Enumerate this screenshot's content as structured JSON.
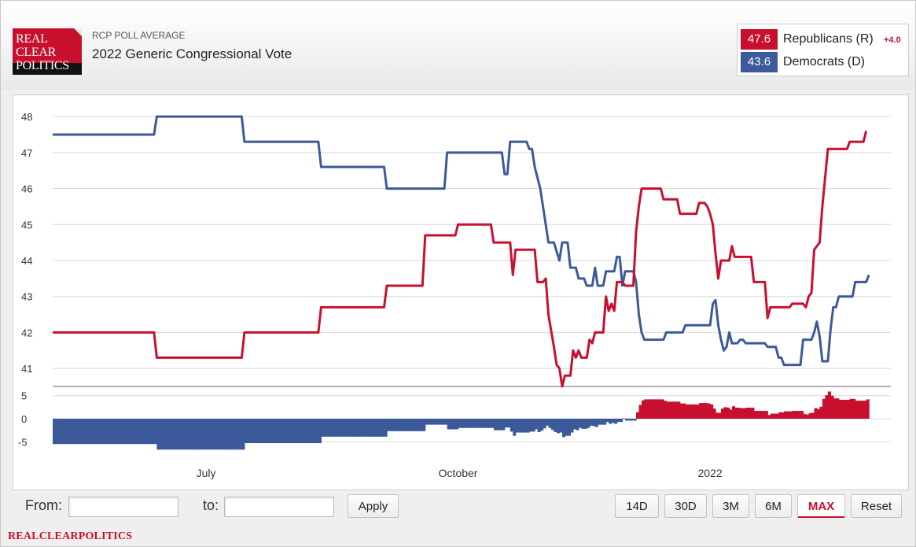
{
  "logo": {
    "lines": [
      "REAL",
      "CLEAR",
      "POLITICS"
    ]
  },
  "header": {
    "kicker": "RCP POLL AVERAGE",
    "title": "2022 Generic Congressional Vote"
  },
  "legend": [
    {
      "value": "47.6",
      "name": "Republicans (R)",
      "spread": "+4.0",
      "color": "#c8102e"
    },
    {
      "value": "43.6",
      "name": "Democrats (D)",
      "spread": "",
      "color": "#3c5a9a"
    }
  ],
  "colors": {
    "republican": "#c8102e",
    "democrat": "#3c5a9a",
    "grid": "#d8d8d8"
  },
  "chart_data": {
    "type": "line",
    "title": "2022 Generic Congressional Vote",
    "x_start": "2021-05-06",
    "x_end": "2022-03-08",
    "x_ticks": [
      {
        "label": "July",
        "date": "2021-07-01"
      },
      {
        "label": "October",
        "date": "2021-10-01"
      },
      {
        "label": "2022",
        "date": "2022-01-01"
      }
    ],
    "ylim": [
      40.5,
      48.2
    ],
    "y_ticks": [
      41,
      42,
      43,
      44,
      45,
      46,
      47,
      48
    ],
    "spread_ylim": [
      -7,
      7
    ],
    "spread_ticks": [
      5,
      0,
      -5
    ],
    "series": [
      {
        "name": "Democrats (D)",
        "color": "#3c5a9a",
        "points": [
          [
            "2021-05-06",
            47.5
          ],
          [
            "2021-06-12",
            47.5
          ],
          [
            "2021-06-13",
            48.0
          ],
          [
            "2021-07-14",
            48.0
          ],
          [
            "2021-07-15",
            47.3
          ],
          [
            "2021-08-11",
            47.3
          ],
          [
            "2021-08-12",
            46.6
          ],
          [
            "2021-09-04",
            46.6
          ],
          [
            "2021-09-05",
            46.0
          ],
          [
            "2021-09-26",
            46.0
          ],
          [
            "2021-09-27",
            47.0
          ],
          [
            "2021-10-17",
            47.0
          ],
          [
            "2021-10-18",
            46.4
          ],
          [
            "2021-10-19",
            46.4
          ],
          [
            "2021-10-20",
            47.3
          ],
          [
            "2021-10-26",
            47.3
          ],
          [
            "2021-10-27",
            47.1
          ],
          [
            "2021-10-28",
            47.1
          ],
          [
            "2021-10-29",
            46.6
          ],
          [
            "2021-10-31",
            46.0
          ],
          [
            "2021-11-02",
            45.0
          ],
          [
            "2021-11-03",
            44.5
          ],
          [
            "2021-11-05",
            44.5
          ],
          [
            "2021-11-07",
            44.0
          ],
          [
            "2021-11-08",
            44.5
          ],
          [
            "2021-11-10",
            44.5
          ],
          [
            "2021-11-11",
            43.8
          ],
          [
            "2021-11-13",
            43.8
          ],
          [
            "2021-11-14",
            43.5
          ],
          [
            "2021-11-16",
            43.5
          ],
          [
            "2021-11-17",
            43.3
          ],
          [
            "2021-11-19",
            43.3
          ],
          [
            "2021-11-20",
            43.8
          ],
          [
            "2021-11-21",
            43.3
          ],
          [
            "2021-11-23",
            43.3
          ],
          [
            "2021-11-24",
            43.7
          ],
          [
            "2021-11-27",
            43.7
          ],
          [
            "2021-11-28",
            44.1
          ],
          [
            "2021-11-29",
            44.1
          ],
          [
            "2021-11-30",
            43.3
          ],
          [
            "2021-12-01",
            43.7
          ],
          [
            "2021-12-04",
            43.7
          ],
          [
            "2021-12-05",
            43.4
          ],
          [
            "2021-12-06",
            42.5
          ],
          [
            "2021-12-07",
            42.0
          ],
          [
            "2021-12-08",
            41.8
          ],
          [
            "2021-12-15",
            41.8
          ],
          [
            "2021-12-16",
            42.0
          ],
          [
            "2021-12-22",
            42.0
          ],
          [
            "2021-12-23",
            42.2
          ],
          [
            "2022-01-01",
            42.2
          ],
          [
            "2022-01-02",
            42.8
          ],
          [
            "2022-01-03",
            42.9
          ],
          [
            "2022-01-04",
            42.2
          ],
          [
            "2022-01-05",
            41.8
          ],
          [
            "2022-01-06",
            41.5
          ],
          [
            "2022-01-07",
            41.6
          ],
          [
            "2022-01-08",
            42.0
          ],
          [
            "2022-01-09",
            41.7
          ],
          [
            "2022-01-11",
            41.7
          ],
          [
            "2022-01-12",
            41.8
          ],
          [
            "2022-01-13",
            41.8
          ],
          [
            "2022-01-14",
            41.7
          ],
          [
            "2022-01-21",
            41.7
          ],
          [
            "2022-01-22",
            41.6
          ],
          [
            "2022-01-25",
            41.6
          ],
          [
            "2022-01-26",
            41.3
          ],
          [
            "2022-01-27",
            41.3
          ],
          [
            "2022-01-28",
            41.1
          ],
          [
            "2022-02-03",
            41.1
          ],
          [
            "2022-02-04",
            41.8
          ],
          [
            "2022-02-07",
            41.8
          ],
          [
            "2022-02-08",
            42.0
          ],
          [
            "2022-02-09",
            42.3
          ],
          [
            "2022-02-10",
            41.9
          ],
          [
            "2022-02-11",
            41.2
          ],
          [
            "2022-02-13",
            41.2
          ],
          [
            "2022-02-14",
            42.1
          ],
          [
            "2022-02-15",
            42.7
          ],
          [
            "2022-02-16",
            42.7
          ],
          [
            "2022-02-17",
            43.0
          ],
          [
            "2022-02-22",
            43.0
          ],
          [
            "2022-02-23",
            43.4
          ],
          [
            "2022-02-27",
            43.4
          ],
          [
            "2022-02-28",
            43.6
          ]
        ]
      },
      {
        "name": "Republicans (R)",
        "color": "#c8102e",
        "points": [
          [
            "2021-05-06",
            42.0
          ],
          [
            "2021-06-12",
            42.0
          ],
          [
            "2021-06-13",
            41.3
          ],
          [
            "2021-07-14",
            41.3
          ],
          [
            "2021-07-15",
            42.0
          ],
          [
            "2021-08-11",
            42.0
          ],
          [
            "2021-08-12",
            42.7
          ],
          [
            "2021-09-04",
            42.7
          ],
          [
            "2021-09-05",
            43.3
          ],
          [
            "2021-09-18",
            43.3
          ],
          [
            "2021-09-19",
            44.7
          ],
          [
            "2021-09-30",
            44.7
          ],
          [
            "2021-10-01",
            45.0
          ],
          [
            "2021-10-13",
            45.0
          ],
          [
            "2021-10-14",
            44.5
          ],
          [
            "2021-10-20",
            44.5
          ],
          [
            "2021-10-21",
            43.6
          ],
          [
            "2021-10-22",
            44.3
          ],
          [
            "2021-10-29",
            44.3
          ],
          [
            "2021-10-30",
            43.4
          ],
          [
            "2021-11-01",
            43.4
          ],
          [
            "2021-11-02",
            43.5
          ],
          [
            "2021-11-03",
            42.5
          ],
          [
            "2021-11-05",
            41.6
          ],
          [
            "2021-11-06",
            41.1
          ],
          [
            "2021-11-07",
            41.0
          ],
          [
            "2021-11-08",
            40.5
          ],
          [
            "2021-11-09",
            40.8
          ],
          [
            "2021-11-11",
            40.8
          ],
          [
            "2021-11-12",
            41.5
          ],
          [
            "2021-11-13",
            41.3
          ],
          [
            "2021-11-14",
            41.5
          ],
          [
            "2021-11-15",
            41.3
          ],
          [
            "2021-11-17",
            41.3
          ],
          [
            "2021-11-18",
            41.8
          ],
          [
            "2021-11-19",
            41.7
          ],
          [
            "2021-11-20",
            42.0
          ],
          [
            "2021-11-23",
            42.0
          ],
          [
            "2021-11-24",
            43.0
          ],
          [
            "2021-11-25",
            42.6
          ],
          [
            "2021-11-26",
            42.8
          ],
          [
            "2021-11-27",
            42.6
          ],
          [
            "2021-11-28",
            43.4
          ],
          [
            "2021-11-30",
            43.4
          ],
          [
            "2021-12-01",
            43.3
          ],
          [
            "2021-12-04",
            43.3
          ],
          [
            "2021-12-05",
            44.8
          ],
          [
            "2021-12-06",
            45.5
          ],
          [
            "2021-12-07",
            46.0
          ],
          [
            "2021-12-14",
            46.0
          ],
          [
            "2021-12-15",
            45.7
          ],
          [
            "2021-12-20",
            45.7
          ],
          [
            "2021-12-21",
            45.3
          ],
          [
            "2021-12-27",
            45.3
          ],
          [
            "2021-12-28",
            45.6
          ],
          [
            "2021-12-30",
            45.6
          ],
          [
            "2021-12-31",
            45.5
          ],
          [
            "2022-01-01",
            45.3
          ],
          [
            "2022-01-02",
            45.0
          ],
          [
            "2022-01-03",
            44.2
          ],
          [
            "2022-01-04",
            43.5
          ],
          [
            "2022-01-05",
            44.0
          ],
          [
            "2022-01-08",
            44.0
          ],
          [
            "2022-01-09",
            44.4
          ],
          [
            "2022-01-10",
            44.1
          ],
          [
            "2022-01-16",
            44.1
          ],
          [
            "2022-01-17",
            43.4
          ],
          [
            "2022-01-21",
            43.4
          ],
          [
            "2022-01-22",
            42.4
          ],
          [
            "2022-01-23",
            42.7
          ],
          [
            "2022-01-30",
            42.7
          ],
          [
            "2022-01-31",
            42.8
          ],
          [
            "2022-02-04",
            42.8
          ],
          [
            "2022-02-05",
            42.7
          ],
          [
            "2022-02-06",
            43.0
          ],
          [
            "2022-02-07",
            43.1
          ],
          [
            "2022-02-08",
            44.3
          ],
          [
            "2022-02-10",
            44.5
          ],
          [
            "2022-02-11",
            45.5
          ],
          [
            "2022-02-13",
            47.1
          ],
          [
            "2022-02-20",
            47.1
          ],
          [
            "2022-02-21",
            47.3
          ],
          [
            "2022-02-26",
            47.3
          ],
          [
            "2022-02-27",
            47.6
          ]
        ]
      }
    ]
  },
  "controls": {
    "from_label": "From:",
    "to_label": "to:",
    "apply": "Apply",
    "ranges": [
      "14D",
      "30D",
      "3M",
      "6M",
      "MAX"
    ],
    "active_range": "MAX",
    "reset": "Reset"
  },
  "footer": {
    "brand": "REALCLEARPOLITICS"
  }
}
